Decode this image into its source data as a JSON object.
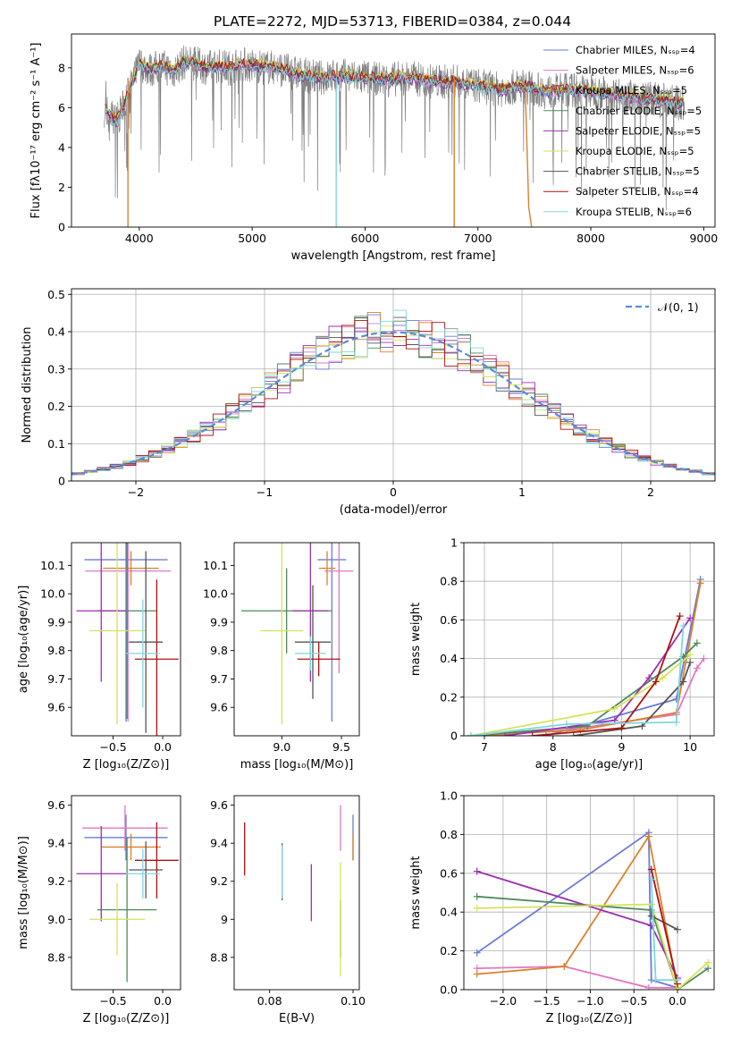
{
  "figure_title": "PLATE=2272, MJD=53713, FIBERID=0384, z=0.044",
  "chart_data": [
    {
      "id": "spectrum",
      "type": "line",
      "title": "PLATE=2272, MJD=53713, FIBERID=0384, z=0.044",
      "xlabel": "wavelength [Angstrom, rest frame]",
      "ylabel": "Flux [fλ10⁻¹⁷ erg cm⁻² s⁻¹ A⁻¹]",
      "xlim": [
        3400,
        9100
      ],
      "ylim": [
        0,
        9.7
      ],
      "xticks": [
        4000,
        5000,
        6000,
        7000,
        8000,
        9000
      ],
      "yticks": [
        0,
        2,
        4,
        6,
        8
      ],
      "legend_position": "top-right",
      "legend": [
        {
          "label": "Chabrier MILES, Nₛₛₚ=4",
          "color": "#6a7bd6"
        },
        {
          "label": "Salpeter MILES, Nₛₛₚ=6",
          "color": "#e377c2"
        },
        {
          "label": "Kroupa MILES, Nₛₛₚ=5",
          "color": "#d9822b"
        },
        {
          "label": "Chabrier ELODIE, Nₛₛₚ=5",
          "color": "#4f8a5b"
        },
        {
          "label": "Salpeter ELODIE, Nₛₛₚ=5",
          "color": "#9b30b0"
        },
        {
          "label": "Kroupa ELODIE, Nₛₛₚ=5",
          "color": "#d4e35a"
        },
        {
          "label": "Chabrier STELIB, Nₛₛₚ=5",
          "color": "#555555"
        },
        {
          "label": "Salpeter STELIB, Nₛₛₚ=4",
          "color": "#b01010"
        },
        {
          "label": "Kroupa STELIB, Nₛₛₚ=6",
          "color": "#7fd6e0"
        }
      ],
      "data_color": "#808080",
      "x": [
        3700,
        3800,
        3900,
        4000,
        4100,
        4200,
        4300,
        4400,
        4500,
        4600,
        4700,
        4800,
        4900,
        5000,
        5200,
        5400,
        5600,
        5800,
        6000,
        6200,
        6400,
        6600,
        6800,
        7000,
        7200,
        7400,
        7600,
        7800,
        8000,
        8200,
        8400,
        8600,
        8800
      ],
      "y": [
        5.9,
        5.3,
        6.6,
        8.2,
        7.9,
        8.1,
        7.8,
        8.3,
        8.2,
        8.0,
        8.1,
        8.0,
        8.2,
        8.1,
        8.0,
        7.7,
        7.5,
        7.6,
        7.5,
        7.4,
        7.5,
        7.3,
        7.3,
        7.1,
        6.9,
        7.1,
        6.8,
        6.9,
        6.8,
        6.7,
        6.5,
        6.4,
        6.2
      ]
    },
    {
      "id": "residuals",
      "type": "line",
      "xlabel": "(data-model)/error",
      "ylabel": "Normed distribution",
      "xlim": [
        -2.5,
        2.5
      ],
      "ylim": [
        0,
        0.515
      ],
      "xticks": [
        -2,
        -1,
        0,
        1,
        2
      ],
      "yticks": [
        0.0,
        0.1,
        0.2,
        0.3,
        0.4,
        0.5
      ],
      "grid": true,
      "legend_position": "top-right",
      "legend": [
        {
          "label": "𝒩(0, 1)",
          "color": "#5b8bd9"
        }
      ],
      "bin_width": 0.1,
      "model": {
        "type": "normal",
        "mean": 0,
        "std": 1
      }
    },
    {
      "id": "age-vs-z",
      "type": "scatter",
      "xlabel": "Z [log₁₀(Z/Z⊙)]",
      "ylabel": "age  [log₁₀(age/yr)]",
      "xlim": [
        -0.92,
        0.18
      ],
      "ylim": [
        9.5,
        10.18
      ],
      "xticks": [
        -0.5,
        0.0
      ],
      "yticks": [
        9.6,
        9.7,
        9.8,
        9.9,
        10.0,
        10.1
      ],
      "series": [
        {
          "color": "#6a7bd6",
          "x": -0.37,
          "xerr": 0.42,
          "y": 10.12,
          "yerr": 0.57
        },
        {
          "color": "#e377c2",
          "x": -0.35,
          "xerr": 0.43,
          "y": 10.08,
          "yerr": 0.53
        },
        {
          "color": "#d9822b",
          "x": -0.32,
          "xerr": 0.28,
          "y": 10.09,
          "yerr": 0.06
        },
        {
          "color": "#4f8a5b",
          "x": -0.36,
          "xerr": 0.3,
          "y": 9.94,
          "yerr": 0.38
        },
        {
          "color": "#9b30b0",
          "x": -0.62,
          "xerr": 0.25,
          "y": 9.94,
          "yerr": 0.25
        },
        {
          "color": "#d4e35a",
          "x": -0.46,
          "xerr": 0.28,
          "y": 9.87,
          "yerr": 0.33
        },
        {
          "color": "#555555",
          "x": -0.17,
          "xerr": 0.17,
          "y": 9.83,
          "yerr": 0.32
        },
        {
          "color": "#b01010",
          "x": -0.06,
          "xerr": 0.22,
          "y": 9.77,
          "yerr": 0.28
        },
        {
          "color": "#7fd6e0",
          "x": -0.2,
          "xerr": 0.17,
          "y": 9.79,
          "yerr": 0.19
        }
      ]
    },
    {
      "id": "age-vs-mass",
      "type": "scatter",
      "xlabel": "mass [log₁₀(M/M⊙)]",
      "ylabel": "",
      "xlim": [
        8.6,
        9.65
      ],
      "ylim": [
        9.5,
        10.18
      ],
      "xticks": [
        9.0,
        9.5
      ],
      "yticks": [
        9.6,
        9.7,
        9.8,
        9.9,
        10.0,
        10.1
      ],
      "series": [
        {
          "color": "#6a7bd6",
          "x": 9.42,
          "xerr": 0.12,
          "y": 10.12,
          "yerr": 0.57
        },
        {
          "color": "#e377c2",
          "x": 9.48,
          "xerr": 0.12,
          "y": 10.08,
          "yerr": 0.36
        },
        {
          "color": "#d9822b",
          "x": 9.38,
          "xerr": 0.07,
          "y": 10.09,
          "yerr": 0.06
        },
        {
          "color": "#4f8a5b",
          "x": 9.04,
          "xerr": 0.38,
          "y": 9.94,
          "yerr": 0.15
        },
        {
          "color": "#9b30b0",
          "x": 9.24,
          "xerr": 0.15,
          "y": 9.94,
          "yerr": 0.25
        },
        {
          "color": "#d4e35a",
          "x": 9.0,
          "xerr": 0.18,
          "y": 9.87,
          "yerr": 0.33
        },
        {
          "color": "#555555",
          "x": 9.26,
          "xerr": 0.15,
          "y": 9.83,
          "yerr": 0.2
        },
        {
          "color": "#b01010",
          "x": 9.31,
          "xerr": 0.18,
          "y": 9.77,
          "yerr": 0.06
        },
        {
          "color": "#7fd6e0",
          "x": 9.24,
          "xerr": 0.13,
          "y": 9.79,
          "yerr": 0.06
        }
      ]
    },
    {
      "id": "mass-weight-vs-age",
      "type": "line",
      "xlabel": "age  [log₁₀(age/yr)]",
      "ylabel": "mass weight",
      "xlim": [
        6.7,
        10.35
      ],
      "ylim": [
        0,
        1.0
      ],
      "xticks": [
        7,
        8,
        9,
        10
      ],
      "yticks": [
        0.0,
        0.2,
        0.4,
        0.6,
        0.8,
        1.0
      ],
      "grid": true,
      "series": [
        {
          "color": "#6a7bd6",
          "x": [
            7.9,
            9.8,
            10.15
          ],
          "y": [
            0.0,
            0.19,
            0.81
          ]
        },
        {
          "color": "#e377c2",
          "x": [
            7.0,
            8.2,
            9.8,
            10.1,
            10.2
          ],
          "y": [
            0.0,
            0.03,
            0.11,
            0.35,
            0.4
          ]
        },
        {
          "color": "#d9822b",
          "x": [
            6.8,
            8.4,
            9.8,
            10.15
          ],
          "y": [
            0.0,
            0.03,
            0.12,
            0.79
          ]
        },
        {
          "color": "#4f8a5b",
          "x": [
            6.8,
            8.5,
            9.9,
            10.1
          ],
          "y": [
            0.0,
            0.05,
            0.41,
            0.48
          ]
        },
        {
          "color": "#9b30b0",
          "x": [
            7.3,
            8.9,
            9.4,
            10.0
          ],
          "y": [
            0.0,
            0.08,
            0.3,
            0.61
          ]
        },
        {
          "color": "#d4e35a",
          "x": [
            6.8,
            8.9,
            9.6,
            10.0
          ],
          "y": [
            0.0,
            0.14,
            0.3,
            0.42
          ]
        },
        {
          "color": "#555555",
          "x": [
            8.3,
            9.3,
            9.9,
            10.0
          ],
          "y": [
            0.0,
            0.05,
            0.28,
            0.38
          ]
        },
        {
          "color": "#b01010",
          "x": [
            7.7,
            9.0,
            9.5,
            9.85
          ],
          "y": [
            0.0,
            0.04,
            0.28,
            0.62
          ]
        },
        {
          "color": "#7fd6e0",
          "x": [
            6.8,
            8.2,
            9.8,
            9.9
          ],
          "y": [
            0.0,
            0.06,
            0.07,
            0.57
          ]
        }
      ]
    },
    {
      "id": "mass-vs-z",
      "type": "scatter",
      "xlabel": "Z [log₁₀(Z/Z⊙)]",
      "ylabel": "mass [log₁₀(M/M⊙)]",
      "xlim": [
        -0.92,
        0.18
      ],
      "ylim": [
        8.63,
        9.65
      ],
      "xticks": [
        -0.5,
        0.0
      ],
      "yticks": [
        8.8,
        9.0,
        9.2,
        9.4,
        9.6
      ],
      "series": [
        {
          "color": "#6a7bd6",
          "x": -0.37,
          "xerr": 0.42,
          "y": 9.43,
          "yerr": 0.12
        },
        {
          "color": "#e377c2",
          "x": -0.38,
          "xerr": 0.43,
          "y": 9.48,
          "yerr": 0.12
        },
        {
          "color": "#d9822b",
          "x": -0.32,
          "xerr": 0.3,
          "y": 9.38,
          "yerr": 0.07
        },
        {
          "color": "#4f8a5b",
          "x": -0.36,
          "xerr": 0.3,
          "y": 9.05,
          "yerr": 0.38
        },
        {
          "color": "#9b30b0",
          "x": -0.62,
          "xerr": 0.25,
          "y": 9.24,
          "yerr": 0.25
        },
        {
          "color": "#d4e35a",
          "x": -0.46,
          "xerr": 0.28,
          "y": 9.0,
          "yerr": 0.19
        },
        {
          "color": "#555555",
          "x": -0.17,
          "xerr": 0.17,
          "y": 9.26,
          "yerr": 0.15
        },
        {
          "color": "#b01010",
          "x": -0.06,
          "xerr": 0.22,
          "y": 9.31,
          "yerr": 0.2
        },
        {
          "color": "#7fd6e0",
          "x": -0.2,
          "xerr": 0.17,
          "y": 9.24,
          "yerr": 0.13
        }
      ]
    },
    {
      "id": "mass-vs-ebv",
      "type": "scatter",
      "xlabel": "E(B-V)",
      "ylabel": "",
      "xlim": [
        0.0715,
        0.1015
      ],
      "ylim": [
        8.63,
        9.65
      ],
      "xticks": [
        0.08,
        0.1
      ],
      "yticks": [
        8.8,
        9.0,
        9.2,
        9.4,
        9.6
      ],
      "series": [
        {
          "color": "#6a7bd6",
          "x": 0.1,
          "y": 9.43,
          "yerr": 0.12
        },
        {
          "color": "#e377c2",
          "x": 0.097,
          "y": 9.48,
          "yerr": 0.12
        },
        {
          "color": "#d9822b",
          "x": 0.1,
          "y": 9.38,
          "yerr": 0.07
        },
        {
          "color": "#4f8a5b",
          "x": 0.097,
          "y": 8.95,
          "yerr": 0.15
        },
        {
          "color": "#9b30b0",
          "x": 0.09,
          "y": 9.14,
          "yerr": 0.15
        },
        {
          "color": "#d4e35a",
          "x": 0.097,
          "y": 9.0,
          "yerr": 0.3
        },
        {
          "color": "#555555",
          "x": 0.083,
          "y": 9.25,
          "yerr": 0.15
        },
        {
          "color": "#b01010",
          "x": 0.074,
          "y": 9.37,
          "yerr": 0.14
        },
        {
          "color": "#7fd6e0",
          "x": 0.083,
          "y": 9.25,
          "yerr": 0.14
        }
      ]
    },
    {
      "id": "mass-weight-vs-z",
      "type": "line",
      "xlabel": "Z [log₁₀(Z/Z⊙)]",
      "ylabel": "mass weight",
      "xlim": [
        -2.45,
        0.42
      ],
      "ylim": [
        0,
        1.0
      ],
      "xticks": [
        -2.0,
        -1.5,
        -1.0,
        -0.5,
        0.0
      ],
      "yticks": [
        0.0,
        0.2,
        0.4,
        0.6,
        0.8,
        1.0
      ],
      "grid": true,
      "series": [
        {
          "color": "#6a7bd6",
          "x": [
            -2.3,
            -0.33,
            -0.3,
            0.0
          ],
          "y": [
            0.19,
            0.81,
            0.05,
            0.01
          ]
        },
        {
          "color": "#e377c2",
          "x": [
            -2.3,
            -1.3,
            -0.33,
            0.0
          ],
          "y": [
            0.11,
            0.12,
            0.01,
            0.01
          ]
        },
        {
          "color": "#d9822b",
          "x": [
            -2.3,
            -1.3,
            -0.33,
            0.0
          ],
          "y": [
            0.08,
            0.12,
            0.79,
            0.01
          ]
        },
        {
          "color": "#4f8a5b",
          "x": [
            -2.3,
            -0.3,
            0.0,
            0.35
          ],
          "y": [
            0.48,
            0.41,
            0.0,
            0.11
          ]
        },
        {
          "color": "#9b30b0",
          "x": [
            -2.3,
            -0.3,
            0.0
          ],
          "y": [
            0.61,
            0.33,
            0.06
          ]
        },
        {
          "color": "#d4e35a",
          "x": [
            -2.3,
            -0.3,
            0.0,
            0.35
          ],
          "y": [
            0.42,
            0.44,
            0.0,
            0.14
          ]
        },
        {
          "color": "#555555",
          "x": [
            -0.3,
            0.0
          ],
          "y": [
            0.38,
            0.31
          ]
        },
        {
          "color": "#b01010",
          "x": [
            -0.3,
            0.0
          ],
          "y": [
            0.62,
            0.03
          ]
        },
        {
          "color": "#7fd6e0",
          "x": [
            -0.3,
            -0.25,
            0.0
          ],
          "y": [
            0.57,
            0.05,
            0.05
          ]
        }
      ]
    }
  ]
}
